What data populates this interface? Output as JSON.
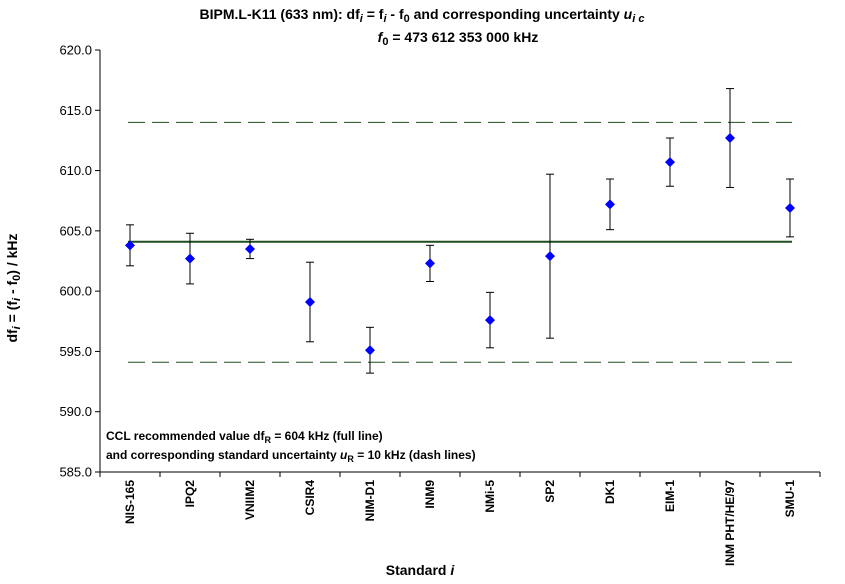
{
  "chart_data": {
    "type": "scatter",
    "title_line1": "BIPM.L-K11 (633 nm): df",
    "title_line1_i": "i",
    "title_line1_mid": " = f",
    "title_line1_i2": "i",
    "title_line1_end": " - f",
    "title_line1_0": "0",
    "title_line1_tail": " and corresponding uncertainty ",
    "title_line1_u": "u",
    "title_line1_ic": "i c",
    "title_line2_f": "f",
    "title_line2_0": "0",
    "title_line2_rest": " = 473 612 353 000 kHz",
    "ylabel": "df",
    "ylabel_i": "i",
    "ylabel_eq": " = (f",
    "ylabel_i2": "i",
    "ylabel_minus": " - f",
    "ylabel_0": "0",
    "ylabel_unit": ") / kHz",
    "xlabel": "Standard ",
    "xlabel_i": "i",
    "ylim": [
      585.0,
      620.0
    ],
    "yticks": [
      "585.0",
      "590.0",
      "595.0",
      "600.0",
      "605.0",
      "610.0",
      "615.0",
      "620.0"
    ],
    "categories": [
      "NIS-165",
      "IPQ2",
      "VNIIM2",
      "CSIR4",
      "NIM-D1",
      "INM9",
      "NMi-5",
      "SP2",
      "DK1",
      "EIM-1",
      "INM PHT/HE/97",
      "SMU-1"
    ],
    "values": [
      603.8,
      602.7,
      603.5,
      599.1,
      595.1,
      602.3,
      597.6,
      602.9,
      607.2,
      610.7,
      612.7,
      606.9
    ],
    "uncertainty": [
      1.7,
      2.1,
      0.8,
      3.3,
      1.9,
      1.5,
      2.3,
      6.8,
      2.1,
      2.0,
      4.1,
      2.4
    ],
    "reference_value": 604.1,
    "reference_uncertainty_band": [
      594.1,
      614.0
    ],
    "marker_color": "#0000ff",
    "reference_line_color": "#1f4f1f",
    "dash_line_color": "#1f4f1f",
    "note_line1": "CCL recommended value df",
    "note_line1_sub": "R",
    "note_line1_rest": " = 604 kHz (full line)",
    "note_line2": "and corresponding standard uncertainty ",
    "note_line2_u": "u",
    "note_line2_sub": "R",
    "note_line2_rest": " = 10 kHz (dash lines)"
  }
}
